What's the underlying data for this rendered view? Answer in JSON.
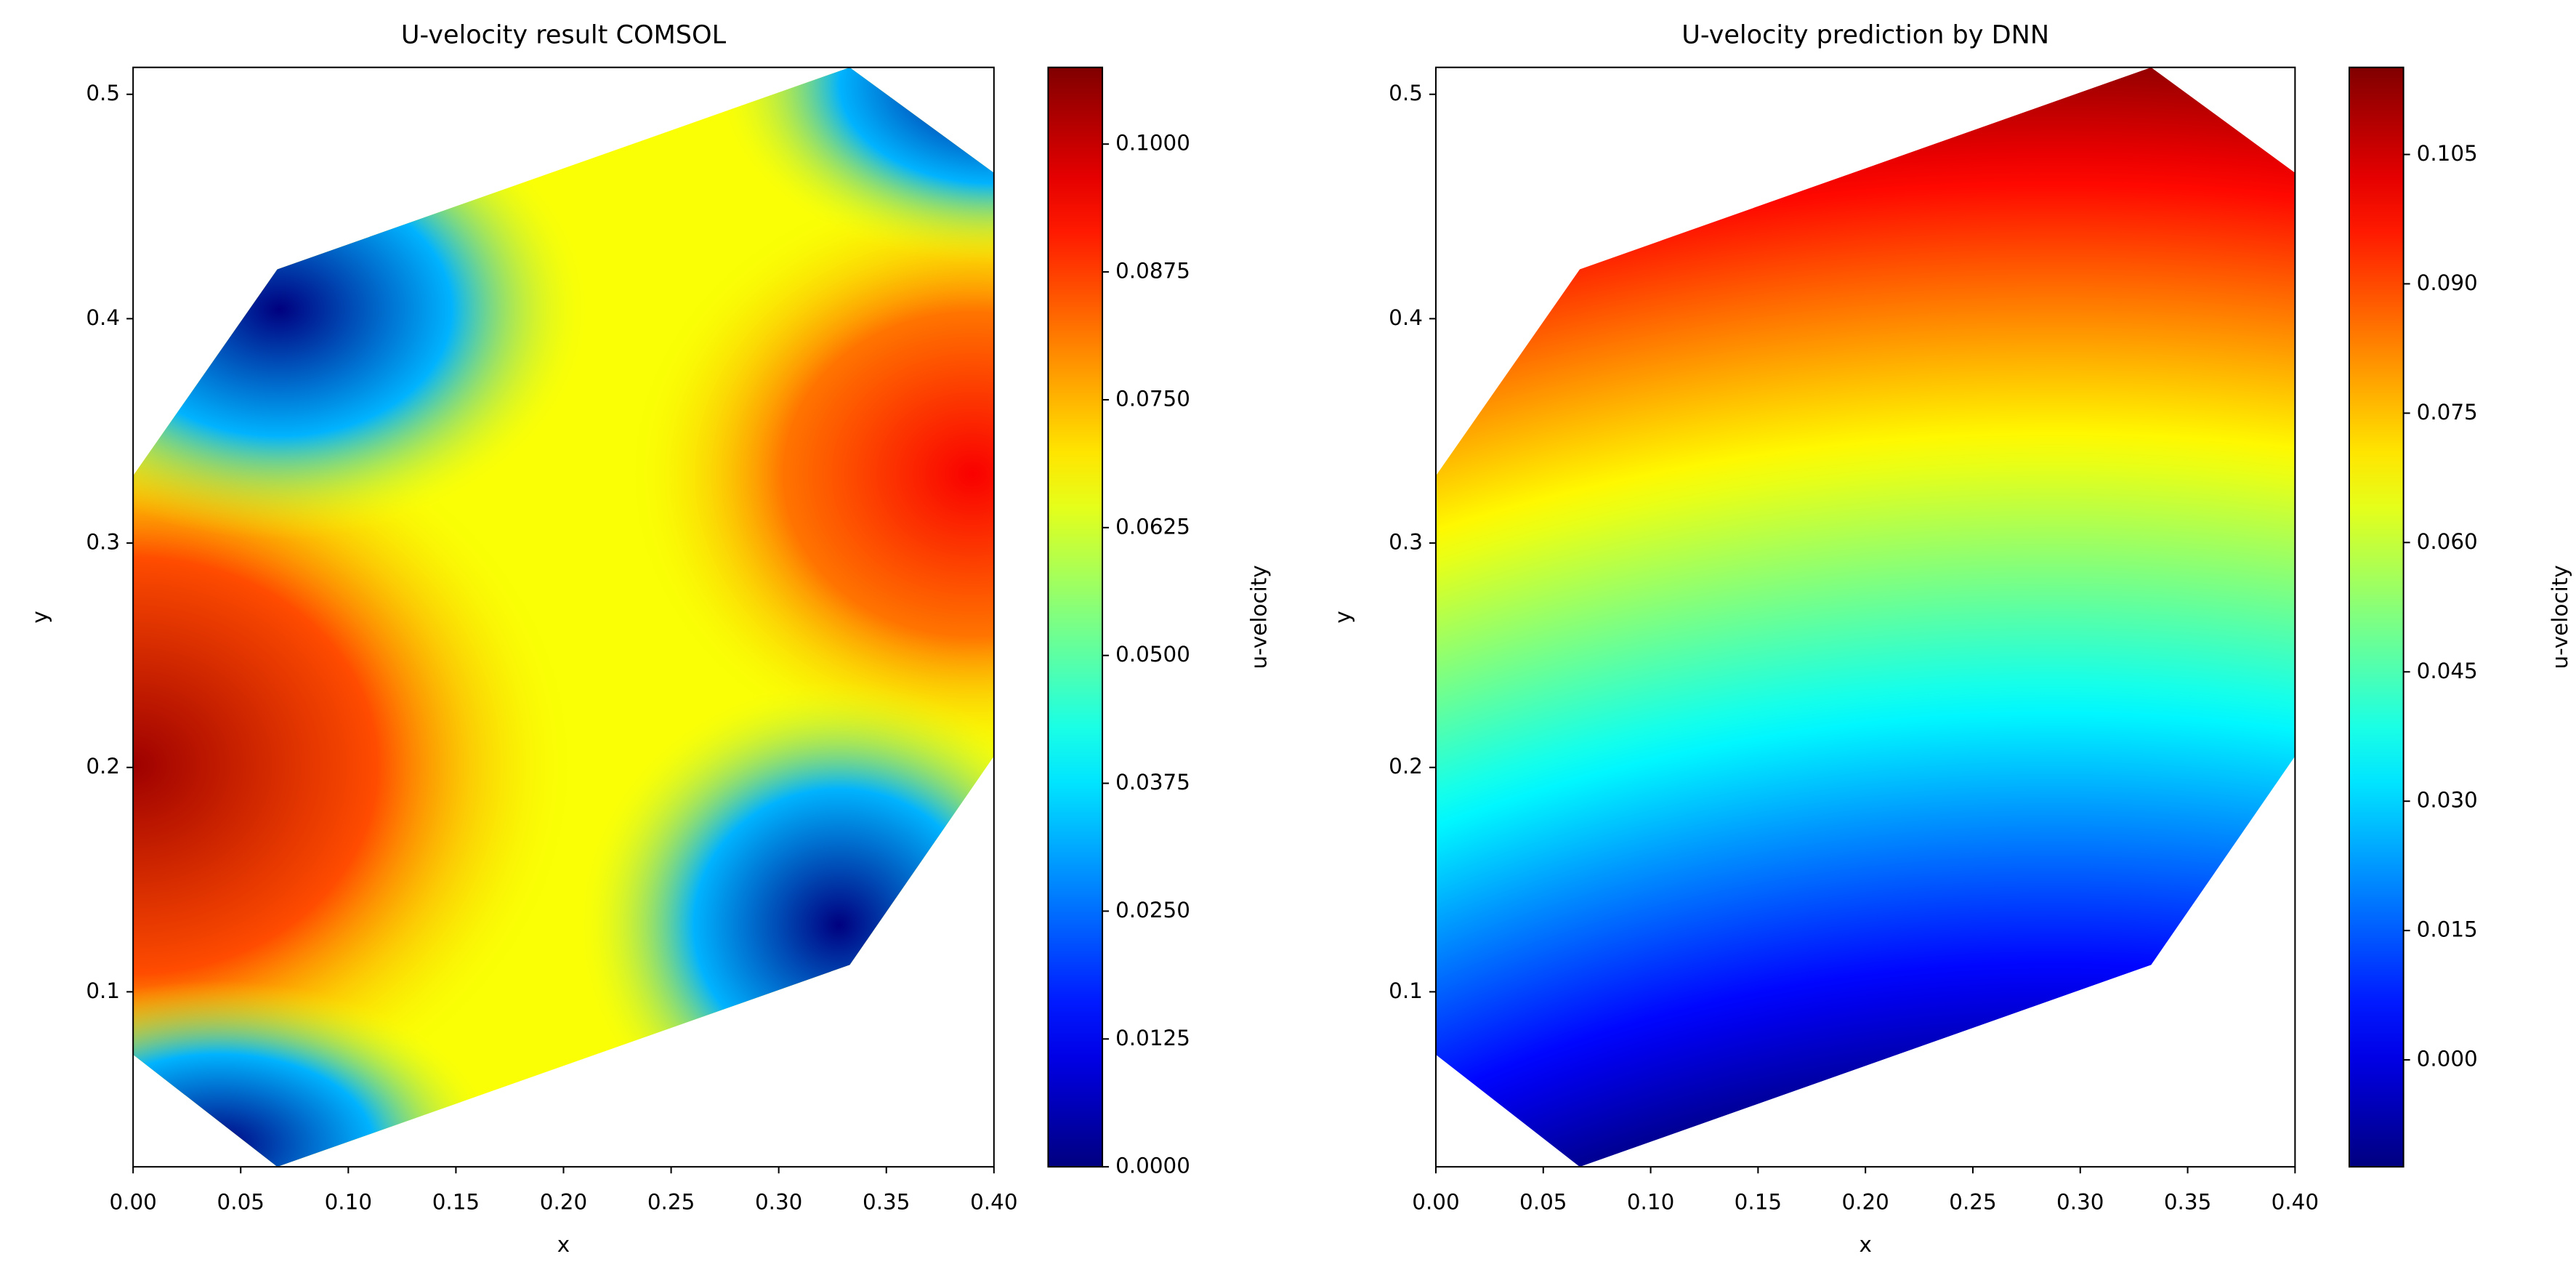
{
  "chart_data": [
    {
      "type": "contour",
      "title": "U-velocity result COMSOL",
      "xlabel": "x",
      "ylabel": "y",
      "xlim": [
        0,
        0.4
      ],
      "ylim": [
        0.022,
        0.512
      ],
      "xticks": [
        {
          "value": 0,
          "label": "0.00"
        },
        0.05,
        {
          "value": 0.1,
          "label": "0.10"
        },
        0.15,
        {
          "value": 0.2,
          "label": "0.20"
        },
        0.25,
        {
          "value": 0.3,
          "label": "0.30"
        },
        0.35,
        {
          "value": 0.4,
          "label": "0.40"
        }
      ],
      "yticks": [
        0.1,
        0.2,
        0.3,
        0.4,
        0.5
      ],
      "domain_x": [
        0,
        0.067,
        0.333,
        0.4,
        0.4,
        0.333,
        0.067,
        0
      ],
      "domain_y": [
        0.33,
        0.422,
        0.512,
        0.465,
        0.205,
        0.112,
        0.022,
        0.072
      ],
      "colorbar_label": "u-velocity",
      "colormap": "jet",
      "clim": [
        0,
        0.1075
      ],
      "cticks": [
        {
          "value": 0,
          "label": "0.0000"
        },
        0.0125,
        {
          "value": 0.025,
          "label": "0.0250"
        },
        0.0375,
        {
          "value": 0.05,
          "label": "0.0500"
        },
        0.0625,
        {
          "value": 0.075,
          "label": "0.0750"
        },
        0.0875,
        {
          "value": 0.1,
          "label": "0.1000"
        }
      ]
    },
    {
      "type": "contour",
      "title": "U-velocity prediction by DNN",
      "xlabel": "x",
      "ylabel": "y",
      "xlim": [
        0,
        0.4
      ],
      "ylim": [
        0.022,
        0.512
      ],
      "xticks": [
        {
          "value": 0,
          "label": "0.00"
        },
        0.05,
        {
          "value": 0.1,
          "label": "0.10"
        },
        0.15,
        {
          "value": 0.2,
          "label": "0.20"
        },
        0.25,
        {
          "value": 0.3,
          "label": "0.30"
        },
        0.35,
        {
          "value": 0.4,
          "label": "0.40"
        }
      ],
      "yticks": [
        0.1,
        0.2,
        0.3,
        0.4,
        0.5
      ],
      "domain_x": [
        0,
        0.067,
        0.333,
        0.4,
        0.4,
        0.333,
        0.067,
        0
      ],
      "domain_y": [
        0.33,
        0.422,
        0.512,
        0.465,
        0.205,
        0.112,
        0.022,
        0.072
      ],
      "colorbar_label": "u-velocity",
      "colormap": "jet",
      "clim": [
        -0.0124,
        0.1151
      ],
      "cticks": [
        {
          "value": 0,
          "label": "0.000"
        },
        0.015,
        {
          "value": 0.03,
          "label": "0.030"
        },
        0.045,
        {
          "value": 0.06,
          "label": "0.060"
        },
        0.075,
        {
          "value": 0.09,
          "label": "0.090"
        },
        0.105
      ]
    }
  ]
}
